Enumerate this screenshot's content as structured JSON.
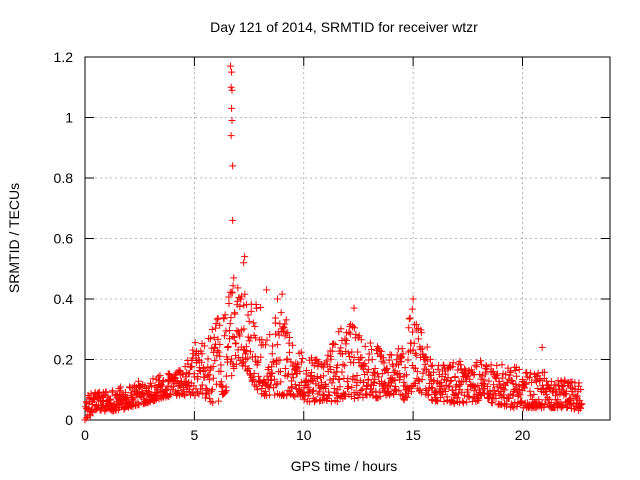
{
  "chart_data": {
    "type": "scatter",
    "title": "Day 121 of 2014, SRMTID for receiver wtzr",
    "xlabel": "GPS time / hours",
    "ylabel": "SRMTID / TECUs",
    "xlim": [
      0,
      24
    ],
    "ylim": [
      0,
      1.2
    ],
    "x_ticks": [
      0,
      5,
      10,
      15,
      20
    ],
    "x_tick_labels": [
      "0",
      "5",
      "10",
      "15",
      "20"
    ],
    "y_ticks": [
      0,
      0.2,
      0.4,
      0.6,
      0.8,
      1.0,
      1.2
    ],
    "y_tick_labels": [
      "0",
      "0.2",
      "0.4",
      "0.6",
      "0.8",
      "1",
      "1.2"
    ],
    "grid": true,
    "marker": "+",
    "series": [
      {
        "name": "SRMTID",
        "color": "#ff0000",
        "x_range": [
          0,
          22.7
        ],
        "envelope": [
          [
            0.0,
            0.0,
            0.08
          ],
          [
            0.5,
            0.03,
            0.1
          ],
          [
            1.0,
            0.03,
            0.1
          ],
          [
            1.5,
            0.03,
            0.11
          ],
          [
            2.0,
            0.04,
            0.12
          ],
          [
            2.5,
            0.05,
            0.13
          ],
          [
            3.0,
            0.06,
            0.14
          ],
          [
            3.5,
            0.07,
            0.15
          ],
          [
            4.0,
            0.08,
            0.16
          ],
          [
            4.5,
            0.08,
            0.17
          ],
          [
            5.0,
            0.08,
            0.26
          ],
          [
            5.5,
            0.07,
            0.25
          ],
          [
            6.0,
            0.05,
            0.33
          ],
          [
            6.5,
            0.1,
            0.4
          ],
          [
            7.0,
            0.2,
            0.52
          ],
          [
            7.5,
            0.15,
            0.4
          ],
          [
            8.0,
            0.08,
            0.38
          ],
          [
            8.5,
            0.08,
            0.3
          ],
          [
            9.0,
            0.08,
            0.42
          ],
          [
            9.5,
            0.08,
            0.27
          ],
          [
            10.0,
            0.06,
            0.22
          ],
          [
            10.5,
            0.06,
            0.2
          ],
          [
            11.0,
            0.06,
            0.2
          ],
          [
            11.5,
            0.06,
            0.28
          ],
          [
            12.0,
            0.07,
            0.34
          ],
          [
            12.5,
            0.07,
            0.3
          ],
          [
            13.0,
            0.08,
            0.26
          ],
          [
            13.5,
            0.07,
            0.24
          ],
          [
            14.0,
            0.08,
            0.22
          ],
          [
            14.5,
            0.05,
            0.25
          ],
          [
            15.0,
            0.1,
            0.4
          ],
          [
            15.5,
            0.08,
            0.27
          ],
          [
            16.0,
            0.06,
            0.2
          ],
          [
            16.5,
            0.06,
            0.18
          ],
          [
            17.0,
            0.05,
            0.2
          ],
          [
            17.5,
            0.06,
            0.18
          ],
          [
            18.0,
            0.06,
            0.2
          ],
          [
            18.5,
            0.05,
            0.19
          ],
          [
            19.0,
            0.05,
            0.19
          ],
          [
            19.5,
            0.04,
            0.18
          ],
          [
            20.0,
            0.04,
            0.17
          ],
          [
            20.5,
            0.04,
            0.16
          ],
          [
            21.0,
            0.04,
            0.16
          ],
          [
            21.5,
            0.04,
            0.14
          ],
          [
            22.0,
            0.04,
            0.14
          ],
          [
            22.7,
            0.03,
            0.13
          ]
        ],
        "notable_points": [
          [
            6.65,
            1.17
          ],
          [
            6.7,
            1.15
          ],
          [
            6.68,
            1.1
          ],
          [
            6.72,
            1.09
          ],
          [
            6.7,
            1.03
          ],
          [
            6.72,
            0.99
          ],
          [
            6.68,
            0.94
          ],
          [
            6.75,
            0.84
          ],
          [
            6.75,
            0.66
          ],
          [
            7.3,
            0.54
          ],
          [
            7.25,
            0.52
          ],
          [
            6.8,
            0.47
          ],
          [
            15.0,
            0.4
          ],
          [
            12.3,
            0.37
          ],
          [
            8.8,
            0.4
          ],
          [
            8.3,
            0.43
          ],
          [
            20.9,
            0.24
          ]
        ]
      }
    ]
  }
}
